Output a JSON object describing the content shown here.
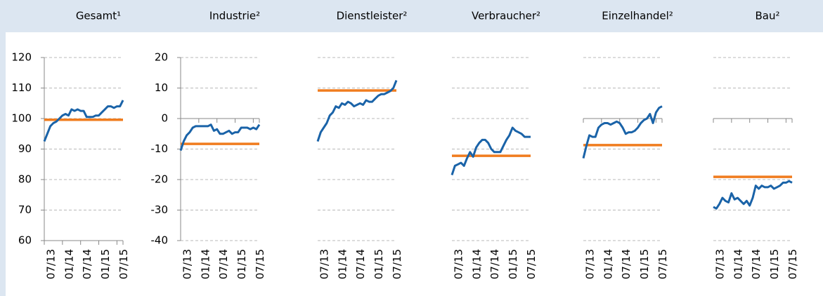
{
  "chart_data": [
    {
      "type": "line",
      "title": "Gesamt¹",
      "categories": [
        "07/13",
        null,
        null,
        null,
        null,
        null,
        "01/14",
        null,
        null,
        null,
        null,
        null,
        "07/14",
        null,
        null,
        null,
        null,
        null,
        "01/15",
        null,
        null,
        null,
        null,
        null,
        "07/15",
        null,
        null
      ],
      "series": [
        {
          "color": "#1a63a8",
          "values": [
            92.5,
            95,
            97.5,
            98.5,
            99,
            100,
            101,
            101.5,
            101,
            103,
            102.5,
            103,
            102.5,
            102.5,
            100.5,
            100.5,
            100.5,
            101,
            101,
            102,
            103,
            104,
            104,
            103.5,
            104,
            104,
            106
          ]
        }
      ],
      "reference": {
        "value": 99.6,
        "color": "#f07c1e"
      },
      "ylim": [
        60,
        120
      ],
      "yticks": [
        60,
        70,
        80,
        90,
        100,
        110,
        120
      ],
      "ytick_labels": true,
      "xaxis_at": 60,
      "grid": true
    },
    {
      "type": "line",
      "title": "Industrie²",
      "categories": [
        "07/13",
        null,
        null,
        null,
        null,
        null,
        "01/14",
        null,
        null,
        null,
        null,
        null,
        "07/14",
        null,
        null,
        null,
        null,
        null,
        "01/15",
        null,
        null,
        null,
        null,
        null,
        "07/15",
        null,
        null
      ],
      "series": [
        {
          "color": "#1a63a8",
          "values": [
            -10.5,
            -7.5,
            -5.5,
            -4.5,
            -3,
            -2.5,
            -2.5,
            -2.5,
            -2.5,
            -2.5,
            -2,
            -4,
            -3.5,
            -5,
            -5,
            -4.5,
            -4,
            -5,
            -4.5,
            -4.5,
            -3,
            -3,
            -3,
            -3.5,
            -3,
            -3.5,
            -2
          ]
        }
      ],
      "reference": {
        "value": -8.3,
        "color": "#f07c1e"
      },
      "ylim": [
        -40,
        20
      ],
      "yticks": [
        -40,
        -30,
        -20,
        -10,
        0,
        10,
        20
      ],
      "ytick_labels": true,
      "xaxis_at": 0,
      "grid": true
    },
    {
      "type": "line",
      "title": "Dienstleister²",
      "categories": [
        "07/13",
        null,
        null,
        null,
        null,
        null,
        "01/14",
        null,
        null,
        null,
        null,
        null,
        "07/14",
        null,
        null,
        null,
        null,
        null,
        "01/15",
        null,
        null,
        null,
        null,
        null,
        "07/15",
        null,
        null
      ],
      "series": [
        {
          "color": "#1a63a8",
          "values": [
            -7.5,
            -4.5,
            -3,
            -1.5,
            1,
            2,
            4,
            3.5,
            5,
            4.5,
            5.5,
            5,
            4,
            4.5,
            5,
            4.5,
            6,
            5.5,
            5.5,
            6.5,
            7.5,
            8,
            8,
            8.5,
            9,
            10,
            12.5
          ]
        }
      ],
      "reference": {
        "value": 9.2,
        "color": "#f07c1e"
      },
      "ylim": [
        -40,
        20
      ],
      "yticks": [
        -40,
        -30,
        -20,
        -10,
        0,
        10,
        20
      ],
      "ytick_labels": false,
      "grid": true
    },
    {
      "type": "line",
      "title": "Verbraucher²",
      "categories": [
        "07/13",
        null,
        null,
        null,
        null,
        null,
        "01/14",
        null,
        null,
        null,
        null,
        null,
        "07/14",
        null,
        null,
        null,
        null,
        null,
        "01/15",
        null,
        null,
        null,
        null,
        null,
        "07/15",
        null,
        null
      ],
      "series": [
        {
          "color": "#1a63a8",
          "values": [
            -18.5,
            -15.5,
            -15,
            -14.5,
            -15.5,
            -13,
            -11,
            -12.5,
            -9.5,
            -8,
            -7,
            -7,
            -8,
            -10,
            -11,
            -11,
            -11,
            -9,
            -7,
            -5.5,
            -3,
            -4,
            -4.5,
            -5,
            -6,
            -6,
            -6
          ]
        }
      ],
      "reference": {
        "value": -12.2,
        "color": "#f07c1e"
      },
      "ylim": [
        -40,
        20
      ],
      "yticks": [
        -40,
        -30,
        -20,
        -10,
        0,
        10,
        20
      ],
      "ytick_labels": false,
      "grid": true
    },
    {
      "type": "line",
      "title": "Einzelhandel²",
      "categories": [
        "07/13",
        null,
        null,
        null,
        null,
        null,
        "01/14",
        null,
        null,
        null,
        null,
        null,
        "07/14",
        null,
        null,
        null,
        null,
        null,
        "01/15",
        null,
        null,
        null,
        null,
        null,
        "07/15",
        null,
        null
      ],
      "series": [
        {
          "color": "#1a63a8",
          "values": [
            -13,
            -9,
            -5.5,
            -6,
            -6,
            -3,
            -2,
            -1.5,
            -1.5,
            -2,
            -1.5,
            -1,
            -1.5,
            -3,
            -5,
            -4.5,
            -4.5,
            -4,
            -3,
            -1.5,
            -0.5,
            0,
            1.5,
            -1.5,
            2,
            3.5,
            4
          ]
        }
      ],
      "reference": {
        "value": -8.7,
        "color": "#f07c1e"
      },
      "ylim": [
        -40,
        20
      ],
      "yticks": [
        -40,
        -30,
        -20,
        -10,
        0,
        10,
        20
      ],
      "ytick_labels": false,
      "xaxis_at": 0,
      "grid": true
    },
    {
      "type": "line",
      "title": "Bau²",
      "categories": [
        "07/13",
        null,
        null,
        null,
        null,
        null,
        "01/14",
        null,
        null,
        null,
        null,
        null,
        "07/14",
        null,
        null,
        null,
        null,
        null,
        "01/15",
        null,
        null,
        null,
        null,
        null,
        "07/15",
        null,
        null
      ],
      "series": [
        {
          "color": "#1a63a8",
          "values": [
            -29,
            -29.5,
            -28,
            -26,
            -27,
            -27.5,
            -24.5,
            -26.5,
            -26,
            -27,
            -28,
            -27,
            -28.5,
            -26,
            -22,
            -23,
            -22,
            -22.5,
            -22.5,
            -22,
            -23,
            -22.5,
            -22,
            -21,
            -21,
            -20.5,
            -21
          ]
        }
      ],
      "reference": {
        "value": -19.1,
        "color": "#f07c1e"
      },
      "ylim": [
        -40,
        20
      ],
      "yticks": [
        -40,
        -30,
        -20,
        -10,
        0,
        10,
        20
      ],
      "ytick_labels": false,
      "xaxis_at": 0,
      "grid": true
    }
  ]
}
